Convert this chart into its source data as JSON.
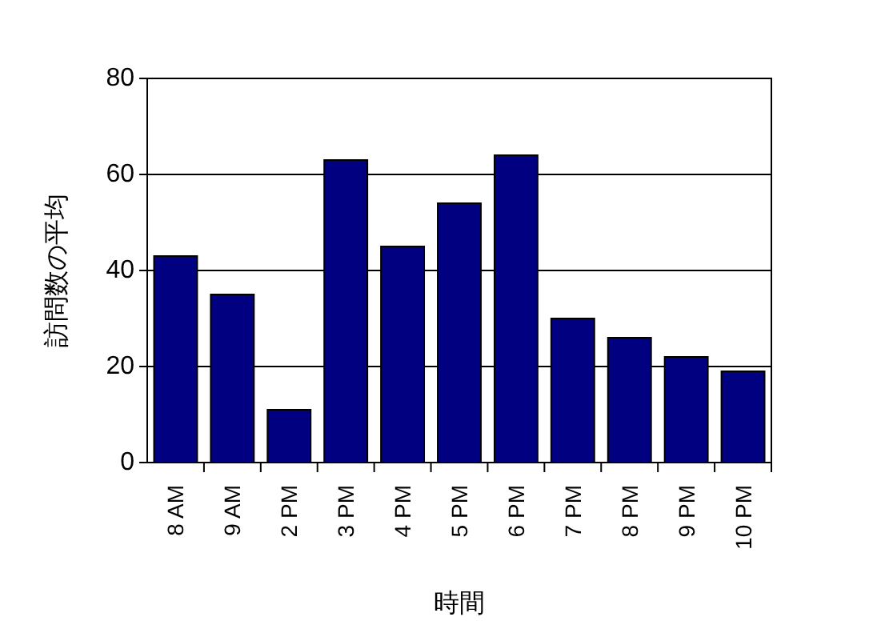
{
  "chart_data": {
    "type": "bar",
    "xlabel": "時間",
    "ylabel": "訪問数の平均",
    "categories": [
      "8 AM",
      "9 AM",
      "2 PM",
      "3 PM",
      "4 PM",
      "5 PM",
      "6 PM",
      "7 PM",
      "8 PM",
      "9 PM",
      "10 PM"
    ],
    "values": [
      43,
      35,
      11,
      63,
      45,
      54,
      64,
      30,
      26,
      22,
      19
    ],
    "color": "#000080",
    "ylim": [
      0,
      80
    ],
    "yticks": [
      0,
      20,
      40,
      60,
      80
    ],
    "grid": "y"
  }
}
